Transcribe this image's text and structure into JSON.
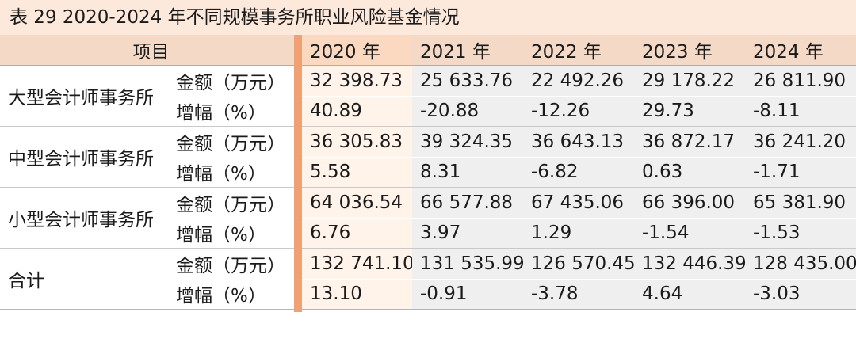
{
  "caption": "表 29    2020-2024 年不同规模事务所职业风险基金情况",
  "header": {
    "item": "项目",
    "years": [
      "2020 年",
      "2021 年",
      "2022 年",
      "2023 年",
      "2024 年"
    ]
  },
  "groups": [
    {
      "name": "大型会计师事务所",
      "amount_label": "金额（万元）",
      "amount": [
        "32 398.73",
        "25 633.76",
        "22 492.26",
        "29 178.22",
        "26 811.90"
      ],
      "growth_label": "增幅（%）",
      "growth": [
        "40.89",
        "-20.88",
        "-12.26",
        "29.73",
        "-8.11"
      ]
    },
    {
      "name": "中型会计师事务所",
      "amount_label": "金额（万元）",
      "amount": [
        "36 305.83",
        "39 324.35",
        "36 643.13",
        "36 872.17",
        "36 241.20"
      ],
      "growth_label": "增幅（%）",
      "growth": [
        "5.58",
        "8.31",
        "-6.82",
        "0.63",
        "-1.71"
      ]
    },
    {
      "name": "小型会计师事务所",
      "amount_label": "金额（万元）",
      "amount": [
        "64 036.54",
        "66 577.88",
        "67 435.06",
        "66 396.00",
        "65 381.90"
      ],
      "growth_label": "增幅（%）",
      "growth": [
        "6.76",
        "3.97",
        "1.29",
        "-1.54",
        "-1.53"
      ]
    },
    {
      "name": "合计",
      "amount_label": "金额（万元）",
      "amount": [
        "132 741.10",
        "131 535.99",
        "126 570.45",
        "132 446.39",
        "128 435.00"
      ],
      "growth_label": "增幅（%）",
      "growth": [
        "13.10",
        "-0.91",
        "-3.78",
        "4.64",
        "-3.03"
      ]
    }
  ],
  "colors": {
    "caption_bg": "#fde9dc",
    "header_bg": "#f4d9c6",
    "accent": "#f0a173",
    "value_bg": "#efefef",
    "highlight_bg": "#fff3ea"
  }
}
